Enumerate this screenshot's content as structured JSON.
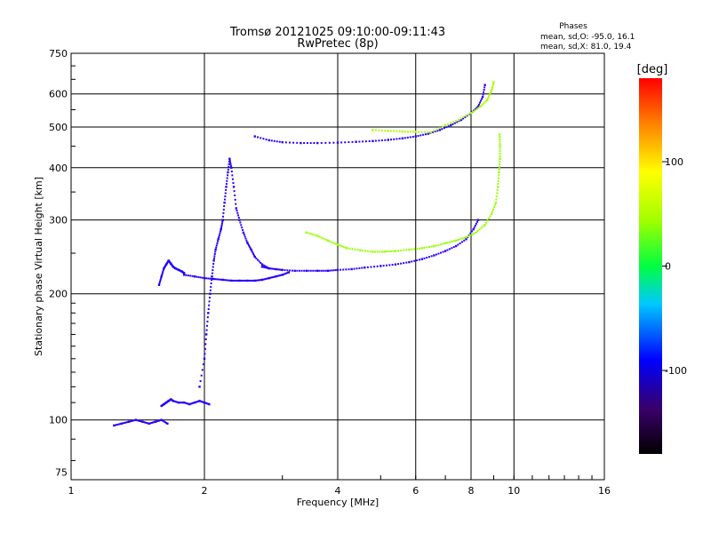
{
  "chart_data": {
    "type": "scatter",
    "title": "Tromsø 20121025 09:10:00-09:11:43",
    "subtitle": "RwPretec (8p)",
    "xlabel": "Frequency [MHz]",
    "ylabel": "Stationary phase Virtual Height [km]",
    "x_scale": "log",
    "y_scale": "log",
    "xlim": [
      1,
      16
    ],
    "ylim": [
      72,
      750
    ],
    "x_ticks": [
      1,
      2,
      4,
      6,
      8,
      10,
      16
    ],
    "x_tick_labels": [
      "1",
      "2",
      "4",
      "6",
      "8",
      "10",
      "16"
    ],
    "y_ticks": [
      75,
      100,
      200,
      300,
      400,
      500,
      600,
      750
    ],
    "y_tick_labels": [
      "75",
      "100",
      "200",
      "300",
      "400",
      "500",
      "600",
      "750"
    ],
    "grid": true,
    "phase_box": {
      "title": "Phases",
      "line_o": "mean, sd,O: -95.0, 16.1",
      "line_x": "mean, sd,X:  81.0, 19.4"
    },
    "colorbar": {
      "label": "[deg]",
      "range": [
        -180,
        180
      ],
      "ticks": [
        100,
        0,
        -100
      ],
      "tick_labels": [
        "100",
        "0",
        "-100"
      ]
    },
    "traces": [
      {
        "x": [
          1.25,
          1.3,
          1.35,
          1.4,
          1.45,
          1.5,
          1.55,
          1.6,
          1.65
        ],
        "y": [
          97,
          98,
          99,
          100,
          99,
          98,
          99,
          100,
          98
        ],
        "phase": -110
      },
      {
        "x": [
          1.6,
          1.62,
          1.64,
          1.66,
          1.68,
          1.7,
          1.75,
          1.8,
          1.85,
          1.9,
          1.95,
          2.0,
          2.05
        ],
        "y": [
          108,
          109,
          110,
          111,
          112,
          111,
          110,
          110,
          109,
          110,
          111,
          110,
          109
        ],
        "phase": -110
      },
      {
        "x": [
          1.58,
          1.6,
          1.62,
          1.64,
          1.66,
          1.68,
          1.7,
          1.72,
          1.75,
          1.78,
          1.8
        ],
        "y": [
          210,
          220,
          230,
          235,
          240,
          236,
          232,
          230,
          228,
          226,
          224
        ],
        "phase": -105
      },
      {
        "x": [
          1.8,
          1.9,
          2.0,
          2.1,
          2.2,
          2.3,
          2.4,
          2.5,
          2.6,
          2.7,
          2.8,
          2.9,
          3.0,
          3.1
        ],
        "y": [
          222,
          220,
          218,
          217,
          216,
          215,
          215,
          215,
          215,
          216,
          218,
          220,
          222,
          225
        ],
        "phase": -110
      },
      {
        "x": [
          2.2,
          2.22,
          2.24,
          2.26,
          2.28,
          2.3,
          2.33,
          2.36,
          2.4,
          2.45,
          2.5,
          2.55,
          2.6,
          2.7,
          2.8
        ],
        "y": [
          300,
          330,
          360,
          390,
          420,
          400,
          360,
          320,
          300,
          280,
          265,
          255,
          245,
          235,
          230
        ],
        "phase": -110
      },
      {
        "x": [
          1.95,
          2.0,
          2.02,
          2.04,
          2.06,
          2.08,
          2.1,
          2.12,
          2.15,
          2.18,
          2.2
        ],
        "y": [
          120,
          140,
          160,
          180,
          200,
          220,
          240,
          255,
          270,
          285,
          300
        ],
        "phase": -105
      },
      {
        "x": [
          2.7,
          2.8,
          2.9,
          3.0,
          3.2,
          3.4,
          3.6,
          3.8,
          4.0,
          4.3,
          4.6,
          5.0,
          5.4,
          5.8,
          6.2,
          6.6,
          7.0,
          7.4,
          7.8,
          8.1,
          8.3
        ],
        "y": [
          232,
          230,
          229,
          228,
          227,
          227,
          227,
          227,
          228,
          229,
          231,
          233,
          235,
          238,
          242,
          247,
          253,
          260,
          270,
          285,
          300
        ],
        "phase": -115
      },
      {
        "x": [
          3.4,
          3.6,
          3.8,
          4.0,
          4.2,
          4.5,
          4.8,
          5.1,
          5.4,
          5.8,
          6.2,
          6.6,
          7.0,
          7.4,
          7.8,
          8.2,
          8.6,
          8.9,
          9.1,
          9.2,
          9.25,
          9.3,
          9.3,
          9.28
        ],
        "y": [
          280,
          275,
          268,
          262,
          257,
          254,
          252,
          252,
          253,
          255,
          257,
          260,
          264,
          268,
          273,
          280,
          292,
          310,
          330,
          360,
          390,
          420,
          450,
          480
        ],
        "phase": 85
      },
      {
        "x": [
          2.6,
          2.8,
          3.0,
          3.3,
          3.6,
          4.0,
          4.4,
          4.8,
          5.2,
          5.6,
          6.0,
          6.4,
          6.8,
          7.2,
          7.6,
          8.0,
          8.3,
          8.5,
          8.6
        ],
        "y": [
          475,
          465,
          460,
          458,
          458,
          459,
          461,
          463,
          466,
          470,
          475,
          482,
          492,
          505,
          520,
          540,
          560,
          590,
          630
        ],
        "phase": -110
      },
      {
        "x": [
          4.8,
          5.2,
          5.6,
          6.0,
          6.5,
          7.0,
          7.5,
          8.0,
          8.4,
          8.7,
          8.9,
          9.0
        ],
        "y": [
          492,
          490,
          488,
          487,
          486,
          505,
          520,
          540,
          560,
          580,
          610,
          640
        ],
        "phase": 90
      }
    ]
  }
}
